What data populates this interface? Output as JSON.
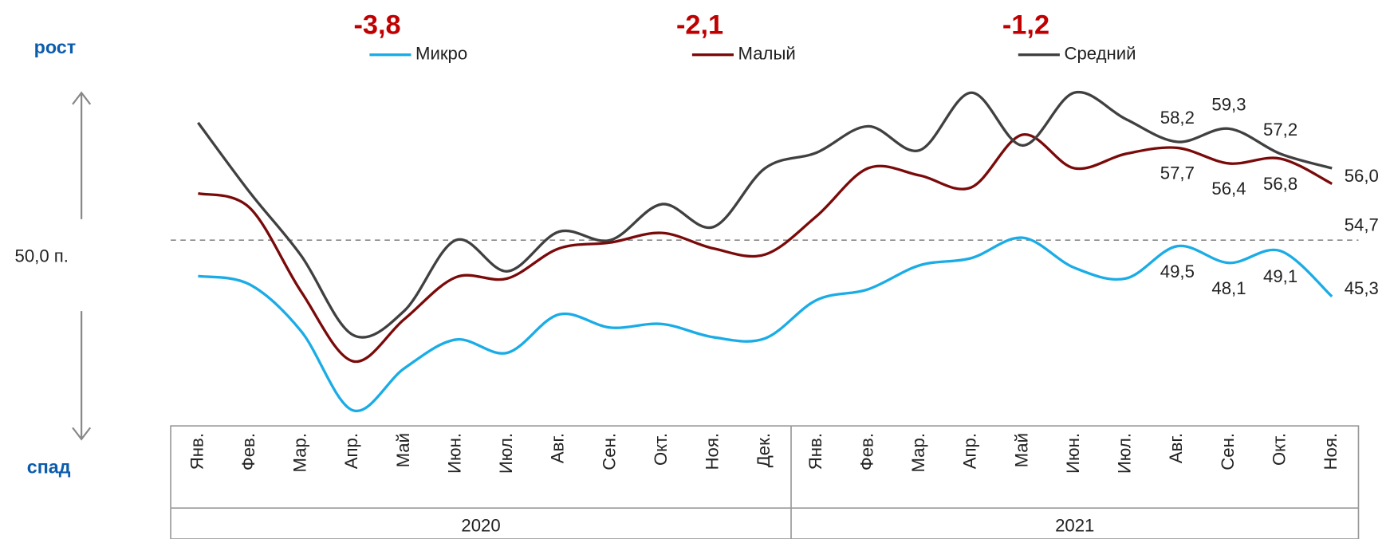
{
  "chart_data": {
    "type": "line",
    "side_labels": {
      "top": "рост",
      "bottom": "спад"
    },
    "reference": {
      "value": 50,
      "label": "50,0 п."
    },
    "annotations": [
      "-3,8",
      "-2,1",
      "-1,2"
    ],
    "groups": [
      {
        "label": "2020",
        "categories": [
          "Янв.",
          "Фев.",
          "Мар.",
          "Апр.",
          "Май",
          "Июн.",
          "Июл.",
          "Авг.",
          "Сен.",
          "Окт.",
          "Ноя.",
          "Дек."
        ]
      },
      {
        "label": "2021",
        "categories": [
          "Янв.",
          "Фев.",
          "Мар.",
          "Апр.",
          "Май",
          "Июн.",
          "Июл.",
          "Авг.",
          "Сен.",
          "Окт.",
          "Ноя."
        ]
      }
    ],
    "ylim": [
      34.5,
      63.4
    ],
    "series": [
      {
        "name": "Микро",
        "color": "#1aace6",
        "values": [
          47.0,
          46.3,
          42.4,
          35.8,
          39.3,
          41.7,
          40.6,
          43.8,
          42.7,
          43.0,
          41.9,
          41.8,
          45.0,
          45.9,
          47.9,
          48.5,
          50.2,
          47.7,
          46.8,
          49.5,
          48.1,
          49.1,
          45.3
        ],
        "value_labels": [
          null,
          null,
          null,
          null,
          null,
          null,
          null,
          null,
          null,
          null,
          null,
          null,
          null,
          null,
          null,
          null,
          null,
          null,
          null,
          "49,5",
          "48,1",
          "49,1",
          "45,3"
        ]
      },
      {
        "name": "Малый",
        "color": "#7a0a0a",
        "values": [
          53.9,
          52.7,
          45.7,
          39.9,
          43.4,
          46.9,
          46.8,
          49.3,
          49.8,
          50.6,
          49.3,
          48.8,
          52.0,
          56.0,
          55.4,
          54.4,
          58.8,
          56.0,
          57.2,
          57.7,
          56.4,
          56.8,
          54.7
        ],
        "value_labels": [
          null,
          null,
          null,
          null,
          null,
          null,
          null,
          null,
          null,
          null,
          null,
          null,
          null,
          null,
          null,
          null,
          null,
          null,
          null,
          "57,7",
          "56,4",
          "56,8",
          "54,7"
        ]
      },
      {
        "name": "Средний",
        "color": "#404040",
        "values": [
          59.8,
          54.0,
          48.7,
          42.1,
          44.1,
          50.0,
          47.4,
          50.7,
          50.0,
          53.0,
          51.1,
          56.0,
          57.3,
          59.5,
          57.5,
          62.3,
          57.9,
          62.3,
          60.1,
          58.2,
          59.3,
          57.2,
          56.0
        ],
        "value_labels": [
          null,
          null,
          null,
          null,
          null,
          null,
          null,
          null,
          null,
          null,
          null,
          null,
          null,
          null,
          null,
          null,
          null,
          null,
          null,
          "58,2",
          "59,3",
          "57,2",
          "56,0"
        ]
      }
    ]
  }
}
